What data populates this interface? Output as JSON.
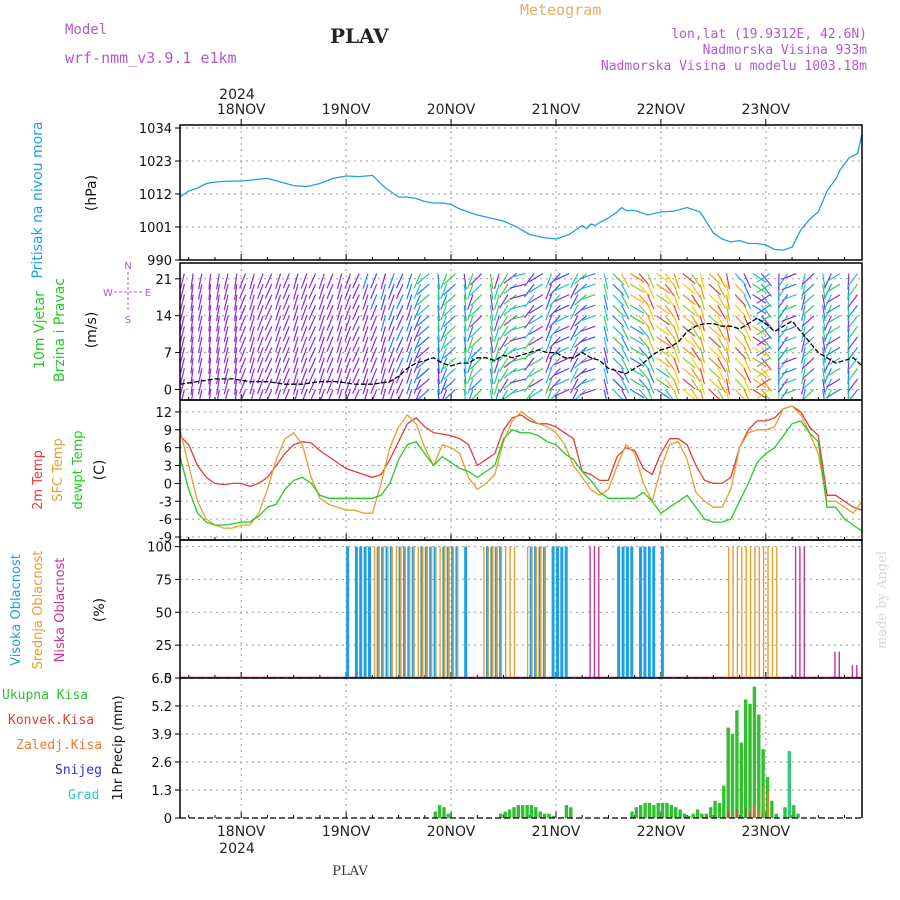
{
  "header": {
    "model_label": "Model",
    "model_name": "wrf-nmm_v3.9.1 e1km",
    "station": "PLAV",
    "title": "Meteogram",
    "coords": "lon,lat (19.9312E, 42.6N)",
    "elevation": "Nadmorska Visina 933m",
    "model_elevation": "Nadmorska Visina u modelu 1003.18m",
    "watermark": "made by Angel",
    "footer_station": "PLAV"
  },
  "time_axis": {
    "year": "2024",
    "labels": [
      "18NOV",
      "19NOV",
      "20NOV",
      "21NOV",
      "22NOV",
      "23NOV"
    ],
    "hours_range": [
      -14,
      142
    ]
  },
  "colors": {
    "pressure": "#1ea0e6",
    "temp2m": "#e63c3c",
    "sfc": "#e6a030",
    "dew": "#22cc22",
    "high_cloud": "#1ea0e6",
    "mid_cloud": "#e6a030",
    "low_cloud": "#cc3399",
    "precip_total": "#30c030",
    "precip_conv": "#e63c3c",
    "precip_frozen": "#f07a30",
    "snow": "#3030e0",
    "hail": "#30c8c8"
  },
  "chart_data": [
    {
      "type": "line",
      "panel": "pressure",
      "ylabel_1": "Pritisak na nivou mora",
      "ylabel_2": "(hPa)",
      "ylim": [
        990,
        1035
      ],
      "yticks": [
        "1034",
        "1023",
        "1012",
        "1001",
        "990"
      ],
      "grid": true,
      "series": [
        {
          "x": [
            -14,
            -12,
            -10,
            -8,
            -6,
            -3,
            0,
            3,
            6,
            9,
            12,
            15,
            18,
            21,
            24,
            27,
            30,
            33,
            36,
            38,
            40,
            42,
            44,
            46,
            48,
            50,
            52,
            54,
            57,
            60,
            63,
            66,
            69,
            72,
            75,
            78,
            79,
            80,
            81,
            82,
            84,
            86,
            87,
            88,
            90,
            93,
            96,
            99,
            102,
            105,
            108,
            110,
            112,
            114,
            116,
            118,
            120,
            122,
            124,
            126,
            128,
            130,
            132,
            134,
            135,
            136,
            137,
            138,
            139,
            140,
            141,
            142
          ],
          "y": [
            1011,
            1013,
            1014,
            1015.5,
            1016,
            1016.3,
            1016.3,
            1016.8,
            1017.2,
            1016,
            1014.8,
            1014.5,
            1015.5,
            1017.2,
            1018,
            1017.8,
            1018.2,
            1014,
            1011,
            1011,
            1010.5,
            1009.5,
            1009,
            1009,
            1008.5,
            1007,
            1006,
            1005,
            1004,
            1003,
            1001,
            998.5,
            997.5,
            997,
            998.5,
            1001.5,
            1000.5,
            1002,
            1001.5,
            1002.5,
            1004,
            1006,
            1007.5,
            1006.5,
            1006.5,
            1005,
            1006,
            1006.3,
            1007.5,
            1006,
            999,
            997,
            996,
            996.5,
            995.5,
            995.5,
            995,
            993.5,
            993.3,
            994.3,
            1000,
            1003.5,
            1006,
            1013,
            1015,
            1017,
            1020,
            1022,
            1024,
            1024.8,
            1025.5,
            1032
          ]
        }
      ]
    },
    {
      "type": "barbs",
      "panel": "wind",
      "ylabel_1": "10m Vjetar",
      "ylabel_2": "Brzina i Pravac",
      "ylabel_3": "(m/s)",
      "ylim": [
        -2,
        24
      ],
      "yticks": [
        "21",
        "14",
        "7",
        "0"
      ],
      "compass": {
        "n": "N",
        "s": "S",
        "e": "E",
        "w": "W"
      },
      "grid": true,
      "series": [
        {
          "name": "speed",
          "x": [
            -14,
            -10,
            -6,
            -2,
            2,
            6,
            10,
            14,
            18,
            22,
            26,
            30,
            34,
            36,
            38,
            40,
            42,
            44,
            46,
            48,
            50,
            52,
            54,
            56,
            58,
            60,
            62,
            64,
            66,
            68,
            70,
            72,
            74,
            76,
            78,
            80,
            82,
            84,
            86,
            88,
            90,
            92,
            94,
            96,
            98,
            100,
            102,
            104,
            106,
            108,
            110,
            112,
            114,
            116,
            118,
            120,
            122,
            124,
            126,
            128,
            130,
            132,
            134,
            136,
            138,
            140,
            142
          ],
          "y": [
            1,
            1.5,
            2,
            2,
            1.5,
            1.5,
            1,
            1,
            1.5,
            1.5,
            1,
            1,
            1.5,
            2.5,
            4,
            5,
            5.5,
            6,
            5,
            4.5,
            5,
            5,
            6,
            6,
            5.5,
            6.5,
            6,
            6.5,
            7,
            7.5,
            7,
            7,
            6,
            6,
            7,
            6,
            5.5,
            4,
            3.5,
            3,
            4,
            5,
            6.5,
            7.5,
            8,
            9,
            11,
            12,
            12.5,
            12.5,
            12,
            12,
            11.5,
            12.5,
            13.5,
            12.5,
            11,
            12,
            13,
            11,
            9,
            7,
            6,
            5,
            5.5,
            6,
            4.5
          ]
        }
      ]
    },
    {
      "type": "line",
      "panel": "temperature",
      "ylabel_1": "2m Temp",
      "ylabel_2": "SFC Temp",
      "ylabel_3": "dewpt Temp",
      "ylabel_4": "(C)",
      "ylim": [
        -9.5,
        14
      ],
      "yticks": [
        "12",
        "9",
        "6",
        "3",
        "0",
        "-3",
        "-6",
        "-9"
      ],
      "grid": true,
      "series": [
        {
          "name": "2m Temp",
          "x": [
            -14,
            -12,
            -10,
            -8,
            -6,
            -4,
            -2,
            0,
            2,
            4,
            6,
            8,
            10,
            12,
            14,
            16,
            18,
            20,
            22,
            24,
            26,
            28,
            30,
            32,
            34,
            36,
            38,
            40,
            42,
            44,
            46,
            48,
            50,
            52,
            54,
            56,
            58,
            60,
            62,
            64,
            66,
            68,
            70,
            72,
            74,
            76,
            78,
            80,
            82,
            84,
            86,
            88,
            90,
            92,
            94,
            96,
            98,
            100,
            102,
            104,
            106,
            108,
            110,
            112,
            114,
            116,
            118,
            120,
            122,
            124,
            126,
            128,
            130,
            132,
            134,
            136,
            138,
            140,
            142
          ],
          "y": [
            8,
            6.5,
            3,
            1,
            0,
            -0.2,
            0,
            0,
            -0.5,
            0,
            1,
            3,
            5,
            6.5,
            7,
            6.8,
            5.5,
            4.5,
            3.5,
            2.5,
            2,
            1.5,
            1,
            1.5,
            4,
            7,
            10,
            11,
            9.5,
            8.5,
            8.3,
            8,
            7.5,
            6.5,
            3,
            4,
            5,
            9,
            11,
            11.5,
            10.5,
            10,
            10,
            9.5,
            8.5,
            7.5,
            2,
            1.5,
            0.5,
            0.5,
            4.5,
            6,
            5.5,
            2.5,
            1.5,
            5,
            7.5,
            7.5,
            6.5,
            3,
            0.5,
            0,
            0,
            1,
            6,
            9,
            10.5,
            10.5,
            11,
            12.5,
            13,
            12,
            9.5,
            8,
            -2,
            -2,
            -3,
            -4,
            -4.5
          ]
        },
        {
          "name": "SFC Temp",
          "x": [
            -14,
            -12,
            -10,
            -8,
            -6,
            -4,
            -2,
            0,
            2,
            4,
            6,
            8,
            10,
            12,
            14,
            16,
            18,
            20,
            22,
            24,
            26,
            28,
            30,
            32,
            34,
            36,
            38,
            40,
            42,
            44,
            46,
            48,
            50,
            52,
            54,
            56,
            58,
            60,
            62,
            64,
            66,
            68,
            70,
            72,
            74,
            76,
            78,
            80,
            82,
            84,
            86,
            88,
            90,
            92,
            94,
            96,
            98,
            100,
            102,
            104,
            106,
            108,
            110,
            112,
            114,
            116,
            118,
            120,
            122,
            124,
            126,
            128,
            130,
            132,
            134,
            136,
            138,
            140,
            142
          ],
          "y": [
            9,
            3,
            -3,
            -6,
            -7,
            -7.5,
            -7.5,
            -7,
            -7,
            -5,
            -1,
            4,
            7.5,
            8.5,
            6.5,
            1,
            -2.5,
            -3.5,
            -4,
            -4.5,
            -4.5,
            -5,
            -5,
            0,
            6,
            9.5,
            11.5,
            10,
            6,
            3,
            6.5,
            6,
            5,
            1,
            -1,
            0,
            1.5,
            7,
            10.5,
            12,
            11,
            10,
            9.5,
            8.5,
            6.5,
            3,
            1,
            -1,
            -2,
            -1,
            3,
            6.5,
            5,
            0,
            -3,
            2.5,
            6.5,
            7,
            4,
            -1.5,
            -3,
            -4,
            -4,
            -1,
            6,
            8.5,
            9,
            9,
            9.5,
            12.5,
            13,
            11.5,
            8.5,
            5,
            -3,
            -3,
            -4,
            -5,
            -3
          ]
        },
        {
          "name": "dewpt Temp",
          "x": [
            -14,
            -12,
            -10,
            -8,
            -6,
            -4,
            -2,
            0,
            2,
            4,
            6,
            8,
            10,
            12,
            14,
            16,
            18,
            20,
            22,
            24,
            26,
            28,
            30,
            32,
            34,
            36,
            38,
            40,
            42,
            44,
            46,
            48,
            50,
            52,
            54,
            56,
            58,
            60,
            62,
            64,
            66,
            68,
            70,
            72,
            74,
            76,
            78,
            80,
            82,
            84,
            86,
            88,
            90,
            92,
            94,
            96,
            98,
            100,
            102,
            104,
            106,
            108,
            110,
            112,
            114,
            116,
            118,
            120,
            122,
            124,
            126,
            128,
            130,
            132,
            134,
            136,
            138,
            140,
            142
          ],
          "y": [
            4.5,
            -1,
            -5,
            -6.5,
            -7,
            -7,
            -6.8,
            -6.5,
            -6.5,
            -5.5,
            -4,
            -3.5,
            -1,
            0.5,
            1,
            0,
            -2,
            -2.5,
            -2.5,
            -2.5,
            -2.5,
            -2.5,
            -2.5,
            -2,
            0,
            4,
            6.5,
            7,
            5,
            3,
            4.5,
            3.5,
            2.5,
            2,
            1,
            2,
            3,
            7.5,
            9,
            8.5,
            8.5,
            8,
            7,
            6.5,
            5,
            4,
            2,
            0.5,
            -1.5,
            -2.5,
            -2.5,
            -2.5,
            -2.5,
            -1.5,
            -3,
            -5,
            -4,
            -3,
            -2,
            -4,
            -6,
            -6.5,
            -6.5,
            -6,
            -3,
            0,
            3.5,
            5,
            6,
            8,
            10,
            10.5,
            8.5,
            7,
            -4,
            -4,
            -6,
            -7,
            -8
          ]
        }
      ]
    },
    {
      "type": "bar",
      "panel": "clouds",
      "ylabel_1": "Visoka Oblacnost",
      "ylabel_2": "Srednja Oblacnost",
      "ylabel_3": "Niska Oblacnost",
      "ylabel_4": "(%)",
      "ylim": [
        0,
        105
      ],
      "yticks": [
        "100",
        "75",
        "50",
        "25",
        "0"
      ],
      "grid": true,
      "series": [
        {
          "name": "Visoka Oblacnost",
          "segments": [
            [
              24,
              38,
              100
            ],
            [
              39,
              51,
              100
            ],
            [
              55,
              60,
              100
            ],
            [
              66,
              75,
              100
            ],
            [
              86,
              96,
              100
            ]
          ]
        },
        {
          "name": "Srednja Oblacnost",
          "segments": [
            [
              30,
              49,
              100
            ],
            [
              55,
              62,
              100
            ],
            [
              65,
              69,
              100
            ],
            [
              111,
              122,
              100
            ]
          ]
        },
        {
          "name": "Niska Oblacnost",
          "segments": [
            [
              79,
              81,
              100
            ],
            [
              126,
              128,
              100
            ],
            [
              135,
              136,
              20
            ],
            [
              139,
              140,
              10
            ]
          ]
        }
      ]
    },
    {
      "type": "bar",
      "panel": "precip",
      "ylabel": "1hr Precip (mm)",
      "legend": [
        "Ukupna Kisa",
        "Konvek.Kisa",
        "Zaledj.Kisa",
        "Snijeg",
        "Grad"
      ],
      "ylim": [
        0,
        6.5
      ],
      "yticks": [
        "6.5",
        "5.2",
        "3.9",
        "2.6",
        "1.3",
        "0"
      ],
      "grid": true,
      "series": [
        {
          "name": "Ukupna Kisa",
          "x": [
            44,
            45,
            46,
            47,
            59,
            60,
            61,
            62,
            63,
            64,
            65,
            66,
            67,
            68,
            69,
            70,
            71,
            74,
            75,
            89,
            90,
            91,
            92,
            93,
            94,
            95,
            96,
            97,
            98,
            99,
            100,
            101,
            102,
            103,
            104,
            105,
            106,
            107,
            108,
            109,
            110,
            111,
            112,
            113,
            114,
            115,
            116,
            117,
            118,
            119,
            120,
            121,
            122,
            123,
            124,
            125,
            126,
            127,
            128
          ],
          "y": [
            0.3,
            0.6,
            0.5,
            0.2,
            0.2,
            0.3,
            0.4,
            0.5,
            0.6,
            0.6,
            0.6,
            0.6,
            0.5,
            0.3,
            0.2,
            0.2,
            0.1,
            0.6,
            0.5,
            0.3,
            0.5,
            0.6,
            0.7,
            0.7,
            0.6,
            0.7,
            0.7,
            0.7,
            0.6,
            0.5,
            0.4,
            0.2,
            0.1,
            0.2,
            0.4,
            0.2,
            0.2,
            0.5,
            0.8,
            0.7,
            1.5,
            4.2,
            3.9,
            5.0,
            3.5,
            5.5,
            5.3,
            6.1,
            4.8,
            3.2,
            1.9,
            0.8,
            0.2,
            0.0,
            0.5,
            3.1,
            0.6,
            0.2,
            0.0
          ]
        },
        {
          "name": "Konvek.Kisa",
          "x": [
            111,
            113,
            115,
            116,
            117,
            119
          ],
          "y": [
            0.3,
            0.4,
            0.5,
            0.3,
            0.6,
            0.2
          ]
        },
        {
          "name": "Zaledj.Kisa",
          "x": [
            117,
            118,
            119,
            120
          ],
          "y": [
            0.6,
            0.4,
            1.5,
            1.2
          ]
        },
        {
          "name": "Grad",
          "x": [
            125
          ],
          "y": [
            3.1
          ]
        }
      ]
    }
  ]
}
